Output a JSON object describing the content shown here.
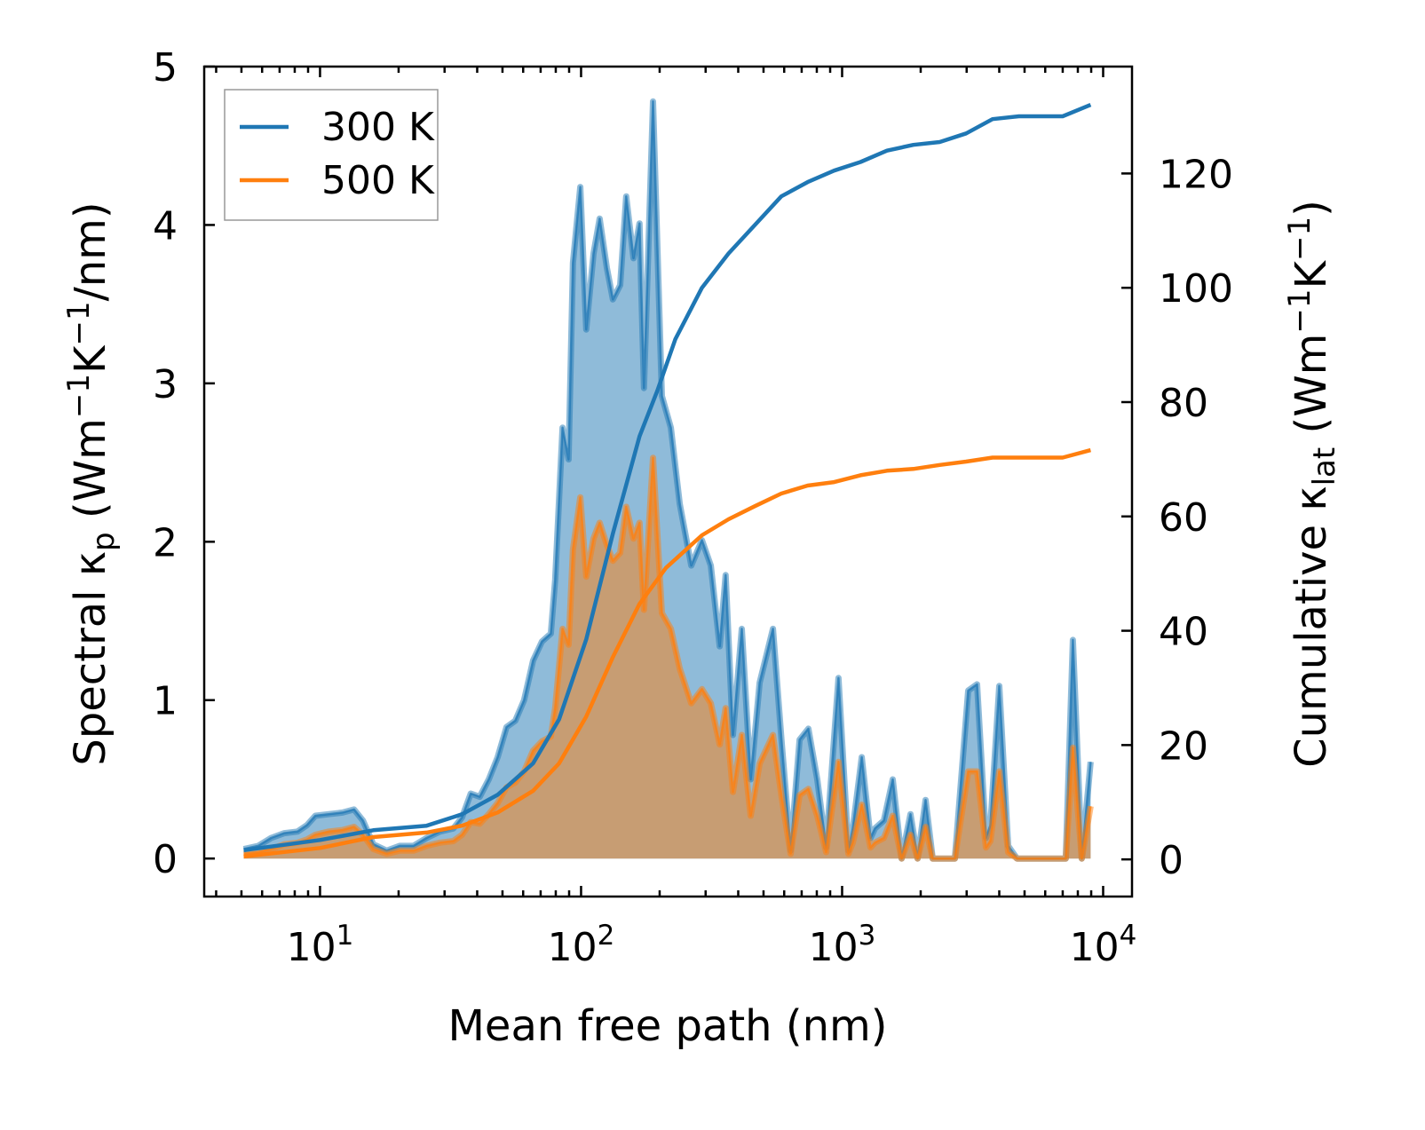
{
  "chart_data": {
    "type": "area",
    "xscale": "log",
    "xlabel": "Mean free path (nm)",
    "xlim": [
      3.6,
      12900
    ],
    "xticks": [
      {
        "base": "10",
        "exp": "1",
        "value": 10
      },
      {
        "base": "10",
        "exp": "2",
        "value": 100
      },
      {
        "base": "10",
        "exp": "3",
        "value": 1000
      },
      {
        "base": "10",
        "exp": "4",
        "value": 10000
      }
    ],
    "ylabel_left": {
      "prefix": "Spectral κ",
      "sub": "p",
      "unit": " (Wm",
      "e1": "−1",
      "k": "K",
      "e2": "−1",
      "tail": "/nm)"
    },
    "ylim_left": [
      -0.24,
      5.0
    ],
    "yticks_left": [
      "0",
      "1",
      "2",
      "3",
      "4",
      "5"
    ],
    "ylabel_right": {
      "prefix": "Cumulative κ",
      "sub": "lat",
      "unit": " (Wm",
      "e1": "−1",
      "k": "K",
      "e2": "−1",
      "tail": ")"
    },
    "ylim_right": [
      -6.5,
      138.7
    ],
    "yticks_right": [
      "0",
      "20",
      "40",
      "60",
      "80",
      "100",
      "120"
    ],
    "legend": {
      "placement": "top-left",
      "entries": [
        "300 K",
        "500 K"
      ]
    },
    "colors": {
      "300 K": "#1f77b4",
      "500 K": "#ff7f0e"
    },
    "x": [
      5.1,
      5.8,
      6.5,
      7.3,
      8.2,
      8.9,
      9.6,
      10.8,
      12.2,
      13.5,
      14.6,
      16,
      18,
      20.2,
      22.8,
      25.6,
      28.8,
      32.4,
      35,
      37.8,
      40.9,
      44.3,
      47.9,
      51.8,
      56,
      60.5,
      65.5,
      70.8,
      76.6,
      79.6,
      84.9,
      89.6,
      93.1,
      99.3,
      104.7,
      111.6,
      117.8,
      125.5,
      132.4,
      141.2,
      148.9,
      158.8,
      167.5,
      174.2,
      188.6,
      204,
      220.8,
      238.8,
      264.3,
      290.4,
      314.1,
      339.7,
      358.1,
      381.7,
      412.9,
      446.6,
      483.1,
      543.3,
      587.5,
      635.3,
      687.3,
      743,
      803.5,
      868.9,
      917.5,
      968.3,
      1057,
      1099,
      1189,
      1285,
      1336,
      1445,
      1563,
      1690,
      1828,
      1946,
      2089,
      2223,
      2704,
      3041,
      3289,
      3557,
      3698,
      4000,
      4325,
      4677,
      7194,
      7656,
      8279,
      8954
    ],
    "series": [
      {
        "name": "300 K",
        "axis": "left",
        "kind": "spectral",
        "values": [
          0.06,
          0.08,
          0.13,
          0.16,
          0.17,
          0.21,
          0.27,
          0.28,
          0.29,
          0.31,
          0.24,
          0.09,
          0.05,
          0.08,
          0.08,
          0.13,
          0.17,
          0.19,
          0.26,
          0.41,
          0.39,
          0.5,
          0.64,
          0.83,
          0.87,
          1.0,
          1.25,
          1.37,
          1.42,
          1.76,
          2.72,
          2.52,
          3.76,
          4.24,
          3.34,
          3.82,
          4.04,
          3.73,
          3.53,
          3.62,
          4.18,
          3.79,
          4.01,
          2.97,
          4.78,
          2.92,
          2.72,
          2.24,
          1.85,
          2.01,
          1.85,
          1.34,
          1.79,
          0.78,
          1.45,
          0.5,
          1.11,
          1.45,
          0.72,
          0.05,
          0.75,
          0.82,
          0.5,
          0.07,
          0.61,
          1.14,
          0.05,
          0.19,
          0.64,
          0.13,
          0.19,
          0.24,
          0.5,
          0,
          0.28,
          0,
          0.37,
          0,
          0,
          1.06,
          1.1,
          0.13,
          0.21,
          1.09,
          0.08,
          0,
          0,
          1.38,
          0,
          0.61
        ]
      },
      {
        "name": "500 K",
        "axis": "left",
        "kind": "spectral",
        "values": [
          0.03,
          0.04,
          0.06,
          0.09,
          0.1,
          0.12,
          0.15,
          0.17,
          0.18,
          0.2,
          0.15,
          0.06,
          0.03,
          0.05,
          0.05,
          0.08,
          0.1,
          0.11,
          0.15,
          0.23,
          0.22,
          0.28,
          0.35,
          0.45,
          0.48,
          0.55,
          0.68,
          0.74,
          0.77,
          0.95,
          1.45,
          1.35,
          1.95,
          2.28,
          1.78,
          2.02,
          2.12,
          1.98,
          1.88,
          1.93,
          2.22,
          2.02,
          2.12,
          1.57,
          2.53,
          1.55,
          1.45,
          1.2,
          0.98,
          1.07,
          0.98,
          0.72,
          0.95,
          0.42,
          0.78,
          0.27,
          0.6,
          0.78,
          0.38,
          0.03,
          0.4,
          0.44,
          0.27,
          0.04,
          0.33,
          0.61,
          0.03,
          0.1,
          0.34,
          0.07,
          0.1,
          0.13,
          0.27,
          0,
          0.15,
          0,
          0.2,
          0,
          0,
          0.55,
          0.55,
          0.07,
          0.11,
          0.55,
          0.04,
          0,
          0,
          0.7,
          0,
          0.33
        ]
      },
      {
        "name": "300 K",
        "axis": "right",
        "kind": "cumulative",
        "x": [
          5.1,
          10,
          16,
          25.6,
          35,
          47.9,
          65.5,
          82.4,
          104.7,
          132.4,
          167.5,
          196,
          229.6,
          290.4,
          367,
          463.4,
          585,
          738,
          932,
          1176,
          1485,
          1874,
          2365,
          2986,
          3770,
          4757,
          7000,
          8954
        ],
        "values": [
          1.6,
          3.4,
          5.1,
          5.9,
          7.9,
          11.3,
          16.8,
          24.5,
          38.5,
          57,
          74,
          82,
          91,
          100,
          106,
          111,
          116,
          118.5,
          120.5,
          122,
          124,
          125,
          125.5,
          127,
          129.5,
          130,
          130,
          132
        ]
      },
      {
        "name": "500 K",
        "axis": "right",
        "kind": "cumulative",
        "x": [
          5.1,
          10,
          16,
          25.6,
          35,
          47.9,
          65.5,
          82.4,
          104.7,
          132.4,
          167.5,
          211.5,
          290.4,
          367,
          463.4,
          585,
          738,
          932,
          1176,
          1485,
          1874,
          2365,
          2986,
          3770,
          7000,
          8954
        ],
        "values": [
          0.5,
          2,
          3.9,
          4.7,
          5.9,
          8.2,
          12,
          16.8,
          25,
          35.4,
          44.7,
          51,
          56.7,
          59.5,
          61.8,
          64,
          65.4,
          66,
          67.2,
          68,
          68.3,
          69,
          69.6,
          70.3,
          70.3,
          71.6
        ]
      }
    ]
  }
}
